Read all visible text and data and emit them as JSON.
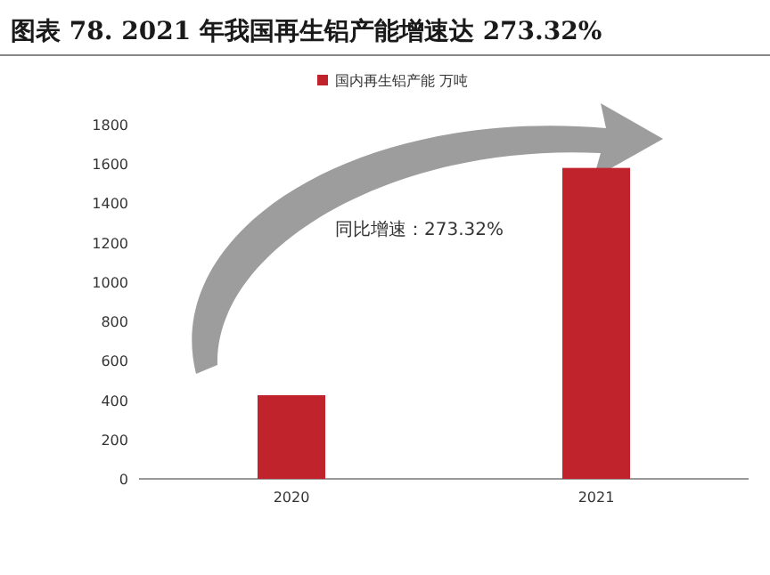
{
  "chart_data": {
    "type": "bar",
    "title": "图表 78. 2021 年我国再生铝产能增速达 273.32%",
    "categories": [
      "2020",
      "2021"
    ],
    "series": [
      {
        "name": "国内再生铝产能 万吨",
        "color": "#c0232c",
        "values": [
          425,
          1580
        ]
      }
    ],
    "ylim": [
      0,
      1800
    ],
    "yticks": [
      0,
      200,
      400,
      600,
      800,
      1000,
      1200,
      1400,
      1600,
      1800
    ],
    "legend": "top",
    "annotations": [
      "同比增速：273.32%"
    ]
  }
}
